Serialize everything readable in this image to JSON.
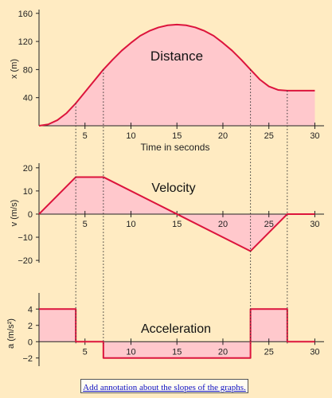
{
  "colors": {
    "curve": "#dc143c",
    "fill": "#ffc8cc",
    "axis": "#222222",
    "background": "#ffebc2"
  },
  "link": {
    "text": "Add annotation about the slopes of the graphs."
  },
  "chart_data": [
    {
      "type": "area",
      "title": "Distance",
      "xlabel": "Time in seconds",
      "ylabel": "x (m)",
      "xlim": [
        0,
        31
      ],
      "ylim": [
        0,
        162
      ],
      "xticks": [
        5,
        10,
        15,
        20,
        25,
        30
      ],
      "yticks": [
        40,
        80,
        120,
        160
      ],
      "x": [
        0,
        1,
        2,
        3,
        4,
        5,
        6,
        7,
        8,
        9,
        10,
        11,
        12,
        13,
        14,
        15,
        16,
        17,
        18,
        19,
        20,
        21,
        22,
        23,
        24,
        25,
        26,
        27,
        28,
        29,
        30
      ],
      "y": [
        0,
        2,
        8,
        18,
        32,
        48,
        64,
        80,
        94,
        107,
        118,
        128,
        135,
        140,
        143,
        144,
        143,
        140,
        135,
        128,
        118,
        107,
        94,
        80,
        66,
        56,
        51,
        50,
        50,
        50,
        50
      ]
    },
    {
      "type": "area",
      "title": "Velocity",
      "xlabel": "",
      "ylabel": "v (m/s)",
      "xlim": [
        0,
        31
      ],
      "ylim": [
        -21,
        22
      ],
      "xticks": [
        5,
        10,
        15,
        20,
        25,
        30
      ],
      "yticks": [
        20,
        10,
        0,
        -10,
        -20
      ],
      "x": [
        0,
        4,
        7,
        15,
        23,
        27,
        30
      ],
      "y": [
        0,
        16,
        16,
        0,
        -16,
        0,
        0
      ]
    },
    {
      "type": "area",
      "title": "Acceleration",
      "xlabel": "",
      "ylabel": "a (m/s²)",
      "xlim": [
        0,
        31
      ],
      "ylim": [
        -3,
        5
      ],
      "xticks": [
        5,
        10,
        15,
        20,
        25,
        30
      ],
      "yticks": [
        4,
        2,
        0,
        -2
      ],
      "x": [
        0,
        4,
        4,
        7,
        7,
        23,
        23,
        27,
        27,
        30
      ],
      "y": [
        4,
        4,
        0,
        0,
        -2,
        -2,
        4,
        4,
        0,
        0
      ]
    }
  ],
  "transition_times": [
    4,
    7,
    23,
    27
  ]
}
